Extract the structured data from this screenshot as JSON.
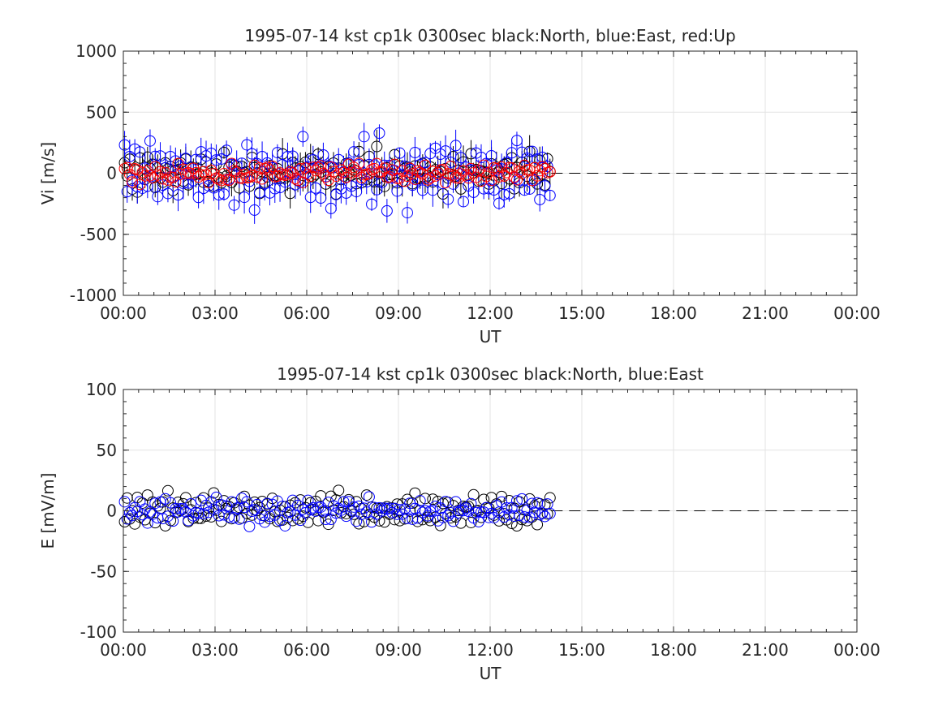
{
  "chart_data": [
    {
      "type": "scatter",
      "title": "1995-07-14 kst cp1k 0300sec black:North, blue:East, red:Up",
      "xlabel": "UT",
      "ylabel": "Vi [m/s]",
      "xlim": [
        0,
        24
      ],
      "ylim": [
        -1000,
        1000
      ],
      "grid": true,
      "xticks": [
        "00:00",
        "03:00",
        "06:00",
        "09:00",
        "12:00",
        "15:00",
        "18:00",
        "21:00",
        "00:00"
      ],
      "yticks": [
        "1000",
        "500",
        "0",
        "-500",
        "-1000"
      ],
      "data_end_hour": 14.0,
      "reference_line": {
        "y": 0,
        "style": "dashed",
        "from_hour": 14.0,
        "to_hour": 24.0
      },
      "series": [
        {
          "name": "North",
          "color": "#000000",
          "marker": "circle-with-errorbar",
          "sample_values": [
            60,
            -40,
            120,
            -80,
            30,
            -150,
            80,
            10,
            -60,
            140,
            -20,
            50,
            -110,
            90,
            0,
            -70,
            130,
            -30,
            20,
            -90,
            70,
            -10,
            40,
            -130,
            100,
            -50,
            10,
            60,
            -40,
            20
          ]
        },
        {
          "name": "East",
          "color": "#0000ff",
          "marker": "circle-with-errorbar",
          "sample_values": [
            200,
            -210,
            150,
            -100,
            230,
            -60,
            180,
            -190,
            90,
            -120,
            260,
            -30,
            110,
            -240,
            140,
            -80,
            60,
            -160,
            170,
            -50,
            120,
            -280,
            80,
            -130,
            150,
            -90,
            40,
            -170,
            110,
            -150
          ]
        },
        {
          "name": "Up",
          "color": "#ff0000",
          "marker": "circle",
          "sample_values": [
            20,
            -10,
            30,
            -25,
            5,
            15,
            -35,
            10,
            -5,
            25,
            -20,
            0,
            35,
            -15,
            10,
            -30,
            20,
            5,
            -10,
            15,
            -25,
            30,
            -5,
            10,
            -20,
            25,
            0,
            -15,
            20,
            -30
          ]
        }
      ]
    },
    {
      "type": "scatter",
      "title": "1995-07-14 kst cp1k 0300sec black:North, blue:East",
      "xlabel": "UT",
      "ylabel": "E [mV/m]",
      "xlim": [
        0,
        24
      ],
      "ylim": [
        -100,
        100
      ],
      "grid": true,
      "xticks": [
        "00:00",
        "03:00",
        "06:00",
        "09:00",
        "12:00",
        "15:00",
        "18:00",
        "21:00",
        "00:00"
      ],
      "yticks": [
        "100",
        "50",
        "0",
        "-50",
        "-100"
      ],
      "data_end_hour": 14.0,
      "reference_line": {
        "y": 0,
        "style": "dashed",
        "from_hour": 14.0,
        "to_hour": 24.0
      },
      "series": [
        {
          "name": "North",
          "color": "#000000",
          "marker": "circle",
          "sample_values": [
            -10,
            8,
            -6,
            3,
            -12,
            9,
            -4,
            6,
            -8,
            10,
            -3,
            5,
            -11,
            7,
            -2,
            4,
            -9,
            11,
            -5,
            2,
            -7,
            9,
            -1,
            6,
            13,
            -6,
            3,
            -8,
            9,
            -4
          ]
        },
        {
          "name": "East",
          "color": "#0000ff",
          "marker": "circle",
          "sample_values": [
            6,
            -4,
            3,
            -7,
            5,
            -2,
            8,
            -5,
            2,
            -6,
            4,
            -3,
            7,
            -1,
            3,
            -5,
            6,
            -2,
            4,
            -7,
            2,
            -4,
            5,
            -3,
            1,
            -6,
            4,
            -2,
            3,
            -5
          ]
        }
      ]
    }
  ]
}
